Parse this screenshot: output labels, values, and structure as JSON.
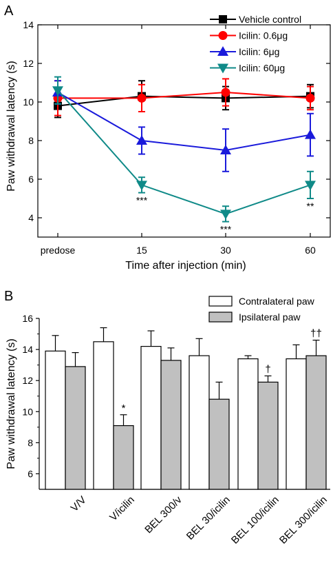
{
  "chart_data": [
    {
      "panel_label": "A",
      "type": "line",
      "xlabel": "Time after injection (min)",
      "ylabel": "Paw withdrawal latency (s)",
      "categories": [
        "predose",
        "15",
        "30",
        "60"
      ],
      "ylim": [
        3,
        14
      ],
      "yticks": [
        4,
        6,
        8,
        10,
        12,
        14
      ],
      "legend_position": "top-right",
      "series": [
        {
          "name": "Vehicle control",
          "color": "#000000",
          "marker": "square",
          "values": [
            9.8,
            10.3,
            10.2,
            10.3
          ],
          "errors": [
            0.6,
            0.8,
            0.6,
            0.6
          ]
        },
        {
          "name": "Icilin: 0.6μg",
          "color": "#ff0000",
          "marker": "circle",
          "values": [
            10.2,
            10.2,
            10.5,
            10.2
          ],
          "errors": [
            0.9,
            0.7,
            0.7,
            0.6
          ]
        },
        {
          "name": "Icilin: 6μg",
          "color": "#1a1adb",
          "marker": "triangle-up",
          "values": [
            10.5,
            8.0,
            7.5,
            8.3
          ],
          "errors": [
            0.6,
            0.7,
            1.1,
            1.1
          ]
        },
        {
          "name": "Icilin: 60μg",
          "color": "#0f8a88",
          "marker": "triangle-down",
          "values": [
            10.6,
            5.7,
            4.2,
            5.7
          ],
          "errors": [
            0.7,
            0.4,
            0.4,
            0.7
          ]
        }
      ],
      "annotations": [
        {
          "category": "15",
          "text": "***"
        },
        {
          "category": "30",
          "text": "***"
        },
        {
          "category": "60",
          "text": "**"
        }
      ]
    },
    {
      "panel_label": "B",
      "type": "bar",
      "ylabel": "Paw withdrawal latency (s)",
      "categories": [
        "V/V",
        "V/icilin",
        "BEL 300/v",
        "BEL 30/icilin",
        "BEL 100/icilin",
        "BEL 300/icilin"
      ],
      "ylim": [
        5,
        16
      ],
      "yticks": [
        6,
        8,
        10,
        12,
        14,
        16
      ],
      "legend_position": "top-right",
      "series": [
        {
          "name": "Contralateral paw",
          "color": "#ffffff",
          "values": [
            13.9,
            14.5,
            14.2,
            13.6,
            13.4,
            13.4
          ],
          "errors": [
            1.0,
            0.9,
            1.0,
            1.1,
            0.2,
            0.9
          ]
        },
        {
          "name": "Ipsilateral paw",
          "color": "#c0c0c0",
          "values": [
            12.9,
            9.1,
            13.3,
            10.8,
            11.9,
            13.6
          ],
          "errors": [
            0.9,
            0.7,
            0.8,
            1.1,
            0.4,
            1.0
          ]
        }
      ],
      "annotations": [
        {
          "category": "V/icilin",
          "series": "Ipsilateral paw",
          "text": "*"
        },
        {
          "category": "BEL 100/icilin",
          "series": "Ipsilateral paw",
          "text": "†"
        },
        {
          "category": "BEL 300/icilin",
          "series": "Ipsilateral paw",
          "text": "††"
        }
      ]
    }
  ]
}
